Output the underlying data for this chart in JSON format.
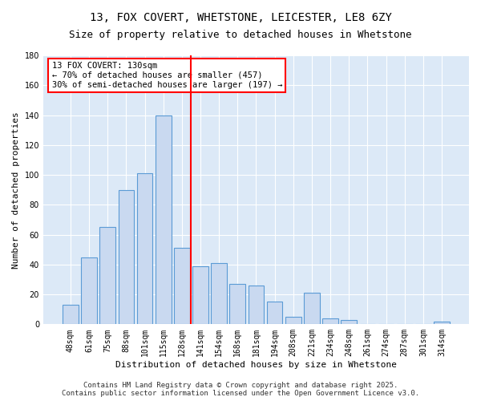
{
  "title": "13, FOX COVERT, WHETSTONE, LEICESTER, LE8 6ZY",
  "subtitle": "Size of property relative to detached houses in Whetstone",
  "xlabel": "Distribution of detached houses by size in Whetstone",
  "ylabel": "Number of detached properties",
  "bar_labels": [
    "48sqm",
    "61sqm",
    "75sqm",
    "88sqm",
    "101sqm",
    "115sqm",
    "128sqm",
    "141sqm",
    "154sqm",
    "168sqm",
    "181sqm",
    "194sqm",
    "208sqm",
    "221sqm",
    "234sqm",
    "248sqm",
    "261sqm",
    "274sqm",
    "287sqm",
    "301sqm",
    "314sqm"
  ],
  "bar_values": [
    13,
    45,
    65,
    90,
    101,
    140,
    51,
    39,
    41,
    27,
    26,
    15,
    5,
    21,
    4,
    3,
    0,
    0,
    0,
    0,
    2
  ],
  "bar_color": "#c9d9f0",
  "bar_edge_color": "#5b9bd5",
  "background_color": "#dce9f7",
  "vline_color": "red",
  "vline_x_index": 6.5,
  "annotation_title": "13 FOX COVERT: 130sqm",
  "annotation_line1": "← 70% of detached houses are smaller (457)",
  "annotation_line2": "30% of semi-detached houses are larger (197) →",
  "annotation_box_color": "white",
  "annotation_box_edge": "red",
  "ylim": [
    0,
    180
  ],
  "yticks": [
    0,
    20,
    40,
    60,
    80,
    100,
    120,
    140,
    160,
    180
  ],
  "footer_line1": "Contains HM Land Registry data © Crown copyright and database right 2025.",
  "footer_line2": "Contains public sector information licensed under the Open Government Licence v3.0.",
  "title_fontsize": 10,
  "subtitle_fontsize": 9,
  "axis_label_fontsize": 8,
  "tick_fontsize": 7,
  "annotation_fontsize": 7.5,
  "footer_fontsize": 6.5
}
